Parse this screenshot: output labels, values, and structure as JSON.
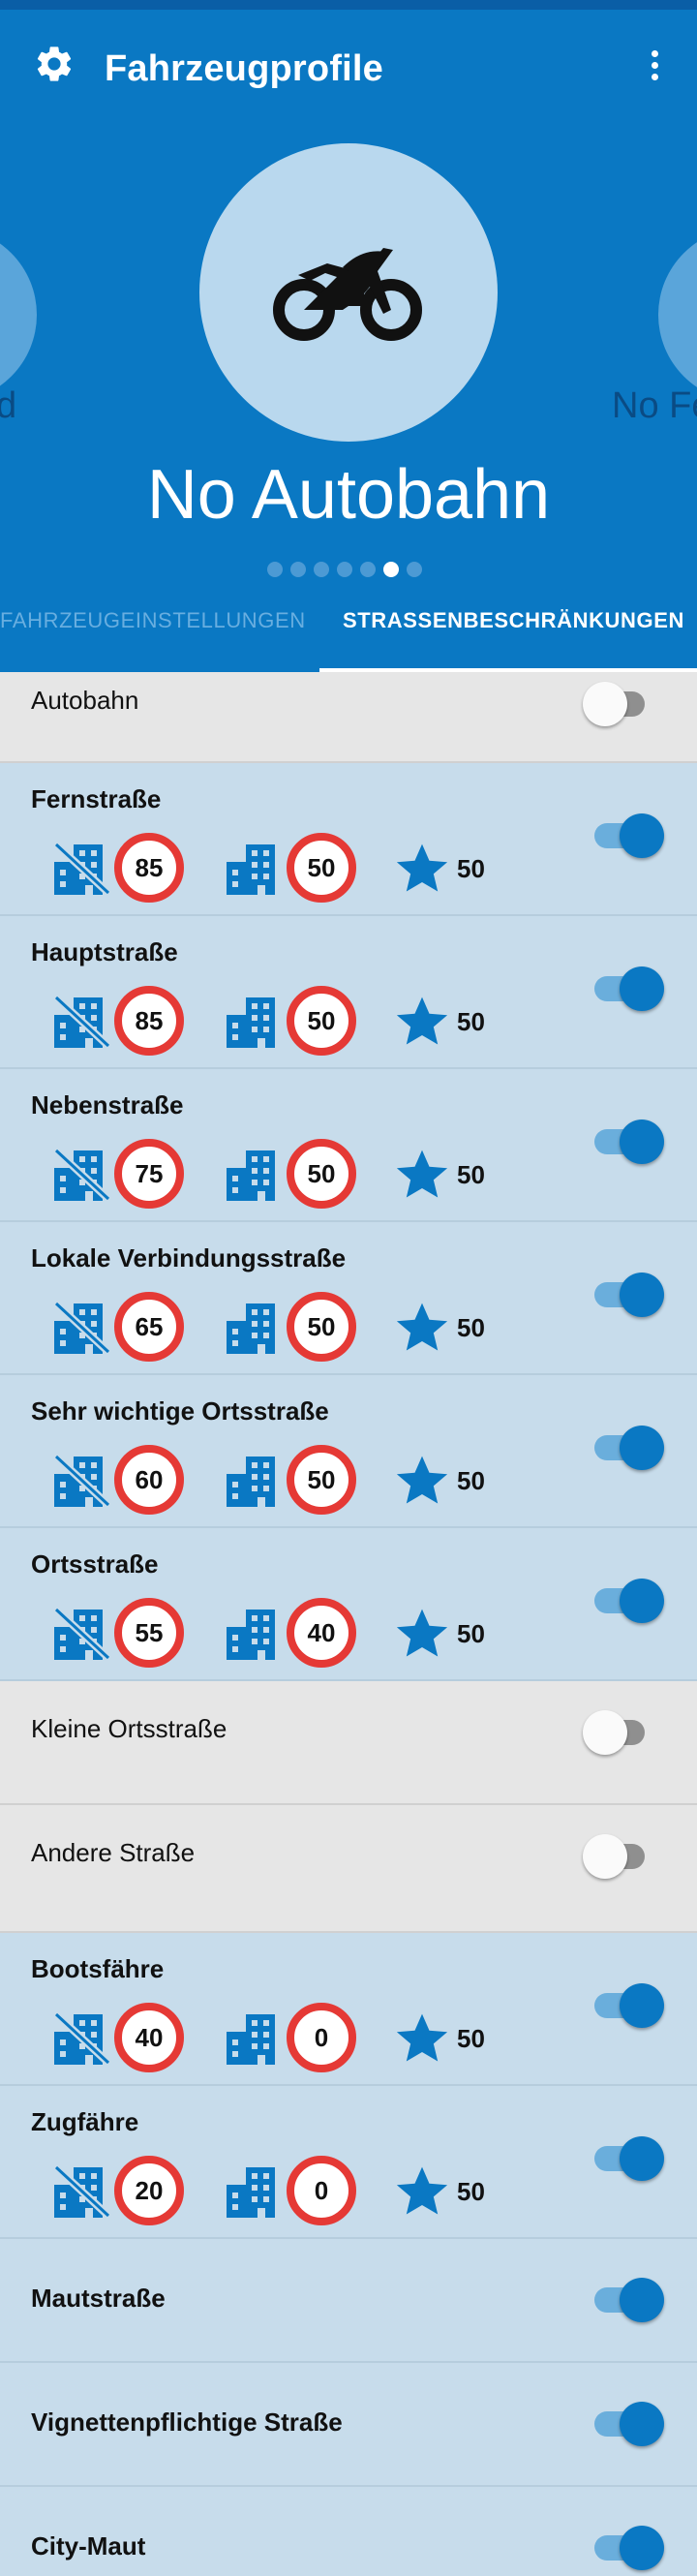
{
  "app": {
    "title": "Fahrzeugprofile"
  },
  "carousel": {
    "current_profile": "No Autobahn",
    "left_label": "d",
    "right_label": "No Fe",
    "dots_count": 7,
    "active_dot": 5
  },
  "tabs": [
    {
      "label": "FAHRZEUGEINSTELLUNGEN",
      "selected": false
    },
    {
      "label": "STRASSENBESCHRÄNKUNGEN",
      "selected": true
    }
  ],
  "roads": [
    {
      "name": "Autobahn",
      "enabled": false
    },
    {
      "name": "Fernstraße",
      "enabled": true,
      "outside_town": "85",
      "in_town": "50",
      "preferred": "50"
    },
    {
      "name": "Hauptstraße",
      "enabled": true,
      "outside_town": "85",
      "in_town": "50",
      "preferred": "50"
    },
    {
      "name": "Nebenstraße",
      "enabled": true,
      "outside_town": "75",
      "in_town": "50",
      "preferred": "50"
    },
    {
      "name": "Lokale Verbindungsstraße",
      "enabled": true,
      "outside_town": "65",
      "in_town": "50",
      "preferred": "50"
    },
    {
      "name": "Sehr wichtige Ortsstraße",
      "enabled": true,
      "outside_town": "60",
      "in_town": "50",
      "preferred": "50"
    },
    {
      "name": "Ortsstraße",
      "enabled": true,
      "outside_town": "55",
      "in_town": "40",
      "preferred": "50"
    },
    {
      "name": "Kleine Ortsstraße",
      "enabled": false
    },
    {
      "name": "Andere Straße",
      "enabled": false
    },
    {
      "name": "Bootsfähre",
      "enabled": true,
      "outside_town": "40",
      "in_town": "0",
      "preferred": "50"
    },
    {
      "name": "Zugfähre",
      "enabled": true,
      "outside_town": "20",
      "in_town": "0",
      "preferred": "50"
    },
    {
      "name": "Mautstraße",
      "enabled": true
    },
    {
      "name": "Vignettenpflichtige Straße",
      "enabled": true
    },
    {
      "name": "City-Maut",
      "enabled": true
    }
  ],
  "colors": {
    "primary": "#0a78c3",
    "dark_primary": "#0a5ea6",
    "active_row_bg": "#c7dceb",
    "inactive_row_bg": "#e6e6e6",
    "speed_sign_ring": "#e53935"
  },
  "icons": {
    "settings": "gear-icon",
    "menu": "more-vert-icon",
    "vehicle": "motorcycle-icon",
    "outside_town": "building-crossed-icon",
    "in_town": "building-icon",
    "preferred": "star-icon"
  }
}
